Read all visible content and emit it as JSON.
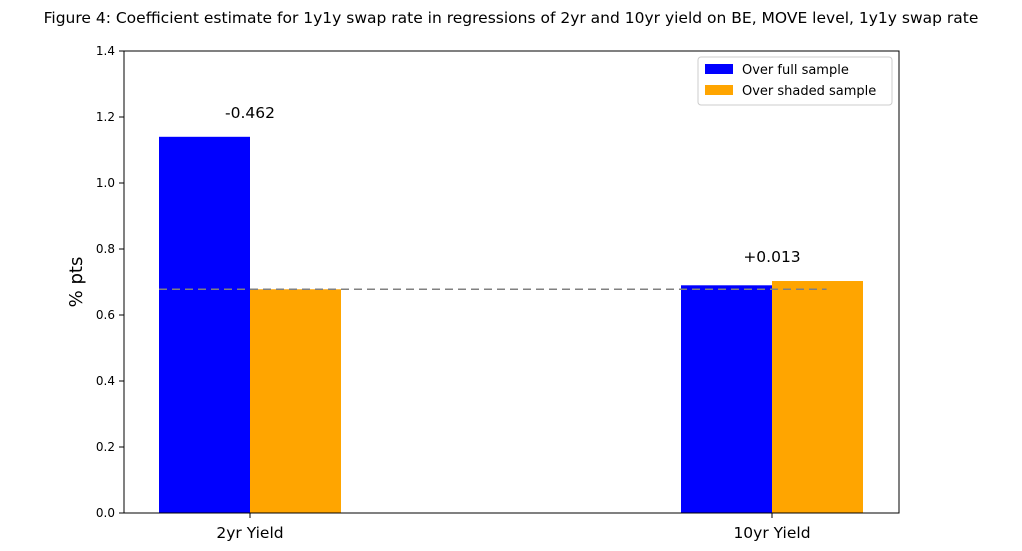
{
  "chart_data": {
    "type": "bar",
    "title": "Figure 4: Coefficient estimate for 1y1y swap rate in regressions of 2yr and 10yr yield on BE, MOVE level, 1y1y swap rate",
    "xlabel": "",
    "ylabel": "% pts",
    "ylim": [
      0.0,
      1.4
    ],
    "yticks": [
      "0.0",
      "0.2",
      "0.4",
      "0.6",
      "0.8",
      "1.0",
      "1.2",
      "1.4"
    ],
    "categories": [
      "2yr Yield",
      "10yr Yield"
    ],
    "series": [
      {
        "name": "Over full sample",
        "color": "#0000ff",
        "values": [
          1.14,
          0.69
        ]
      },
      {
        "name": "Over shaded sample",
        "color": "#ffa500",
        "values": [
          0.678,
          0.703
        ]
      }
    ],
    "annotations": [
      "-0.462",
      "+0.013"
    ],
    "reference_line": {
      "value": 0.678,
      "style": "dashed",
      "color": "#808080"
    },
    "legend_position": "top-right",
    "grid": false
  }
}
